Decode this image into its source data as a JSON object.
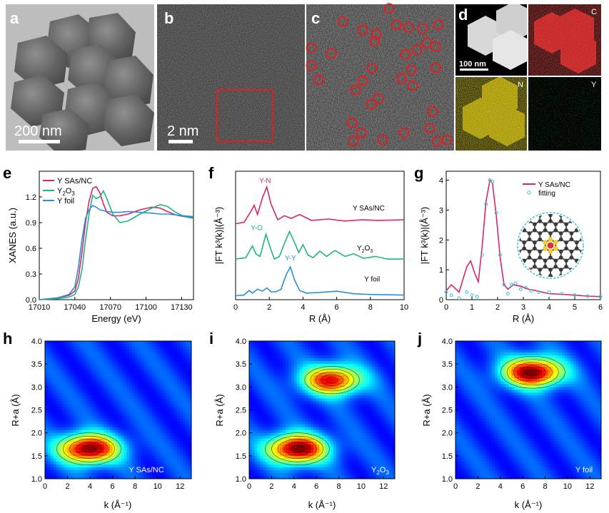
{
  "colors": {
    "sas": "#d6246e",
    "y2o3": "#1fb57f",
    "foil": "#2b8fd6",
    "fit": "#38c6cc",
    "scalebar": "#ffffff",
    "circle": "#e02020",
    "carbon": "#3a3a3a",
    "nitrogen": "#f1cc2a",
    "yttrium": "#e03030"
  },
  "panels": {
    "a": {
      "label": "a",
      "scalebar": "200 nm"
    },
    "b": {
      "label": "b",
      "scalebar": "2 nm"
    },
    "c": {
      "label": "c"
    },
    "d": {
      "label": "d",
      "scalebar": "100 nm",
      "maps": [
        "C",
        "N",
        "Y"
      ]
    },
    "e": {
      "label": "e"
    },
    "f": {
      "label": "f"
    },
    "g": {
      "label": "g"
    },
    "h": {
      "label": "h",
      "tag": "Y SAs/NC"
    },
    "i": {
      "label": "i",
      "tag_main": "Y",
      "tag_sub1": "2",
      "tag_mid": "O",
      "tag_sub2": "3"
    },
    "j": {
      "label": "j",
      "tag": "Y foil"
    }
  },
  "chart_data": [
    {
      "id": "e",
      "type": "line",
      "xlabel": "Energy (eV)",
      "ylabel": "XANES (a.u.)",
      "xlim": [
        17010,
        17140
      ],
      "ylim": [
        0,
        1.5
      ],
      "xticks": [
        "17010",
        "17040",
        "17070",
        "17100",
        "17130"
      ],
      "yticks": [
        "0.0",
        "0.3",
        "0.6",
        "0.9",
        "1.2"
      ],
      "legend": [
        "Y SAs/NC",
        "Y2O3",
        "Y foil"
      ],
      "series": [
        {
          "name": "Y SAs/NC",
          "x": [
            17010,
            17025,
            17035,
            17040,
            17043,
            17046,
            17049,
            17052,
            17055,
            17058,
            17061,
            17064,
            17067,
            17072,
            17078,
            17085,
            17095,
            17105,
            17112,
            17118,
            17125,
            17132,
            17140
          ],
          "y": [
            0.0,
            0.02,
            0.05,
            0.1,
            0.25,
            0.55,
            0.9,
            1.15,
            1.3,
            1.32,
            1.25,
            1.12,
            1.02,
            0.98,
            0.98,
            1.0,
            1.05,
            1.08,
            1.07,
            1.03,
            0.99,
            0.97,
            0.96
          ]
        },
        {
          "name": "Y2O3",
          "x": [
            17010,
            17025,
            17035,
            17040,
            17043,
            17046,
            17049,
            17052,
            17055,
            17058,
            17061,
            17064,
            17067,
            17072,
            17078,
            17085,
            17095,
            17105,
            17112,
            17118,
            17125,
            17132,
            17140
          ],
          "y": [
            0.0,
            0.01,
            0.03,
            0.06,
            0.15,
            0.35,
            0.7,
            1.0,
            1.22,
            1.18,
            1.2,
            1.27,
            1.18,
            1.0,
            0.9,
            0.92,
            1.0,
            1.07,
            1.11,
            1.09,
            1.02,
            0.97,
            0.95
          ]
        },
        {
          "name": "Y foil",
          "x": [
            17010,
            17025,
            17035,
            17040,
            17043,
            17046,
            17049,
            17052,
            17055,
            17058,
            17061,
            17064,
            17067,
            17072,
            17078,
            17085,
            17095,
            17105,
            17112,
            17118,
            17125,
            17132,
            17140
          ],
          "y": [
            0.0,
            0.02,
            0.06,
            0.15,
            0.38,
            0.7,
            0.95,
            1.05,
            1.1,
            1.08,
            1.05,
            1.04,
            1.03,
            1.02,
            1.02,
            1.03,
            1.02,
            1.01,
            1.0,
            1.0,
            0.99,
            0.98,
            0.97
          ]
        }
      ]
    },
    {
      "id": "f",
      "type": "line",
      "xlabel": "R (Å)",
      "ylabel": "|FT k³(k)|(Å⁻³)",
      "xlim": [
        0,
        10
      ],
      "xticks": [
        "0",
        "2",
        "4",
        "6",
        "8",
        "10"
      ],
      "labels": [
        {
          "text": "Y-N",
          "x": 1.75,
          "y": 8.6,
          "series": "Y SAs/NC"
        },
        {
          "text": "Y SAs/NC",
          "x": 7.9,
          "y": 6.5
        },
        {
          "text": "Y-O",
          "x": 1.25,
          "y": 5.0,
          "series": "Y2O3"
        },
        {
          "text": "Y foil",
          "x": 8.1,
          "y": 1.1
        },
        {
          "text": "Y-Y",
          "x": 3.25,
          "y": 2.7,
          "series": "Y foil"
        }
      ],
      "series": [
        {
          "name": "Y SAs/NC",
          "x": [
            0,
            0.5,
            0.9,
            1.1,
            1.3,
            1.6,
            1.85,
            2.1,
            2.5,
            2.9,
            3.3,
            3.8,
            4.5,
            5.5,
            6.5,
            7.5,
            8.5,
            10
          ],
          "y": [
            5.5,
            5.6,
            6.4,
            6.9,
            6.2,
            7.5,
            8.3,
            7.0,
            5.8,
            6.1,
            5.9,
            6.2,
            5.75,
            5.85,
            5.7,
            5.8,
            5.75,
            5.8
          ]
        },
        {
          "name": "Y2O3",
          "x": [
            0,
            0.6,
            1.0,
            1.2,
            1.45,
            1.8,
            2.1,
            2.3,
            2.6,
            2.9,
            3.2,
            3.45,
            3.75,
            4.0,
            4.3,
            4.6,
            5.0,
            5.4,
            5.9,
            6.5,
            7.0,
            7.6,
            8.3,
            9,
            10
          ],
          "y": [
            2.8,
            2.9,
            3.8,
            3.2,
            3.0,
            4.7,
            3.5,
            2.8,
            3.0,
            4.0,
            4.9,
            4.2,
            3.3,
            3.9,
            3.1,
            2.9,
            3.4,
            3.0,
            3.45,
            3.0,
            3.2,
            2.85,
            3.0,
            2.8,
            2.8
          ]
        },
        {
          "name": "Y foil",
          "x": [
            0,
            0.5,
            0.8,
            1.0,
            1.3,
            1.6,
            1.85,
            2.1,
            2.4,
            2.7,
            3.0,
            3.25,
            3.5,
            3.8,
            4.2,
            5.0,
            6.0,
            7.0,
            8.0,
            10
          ],
          "y": [
            0.0,
            0.05,
            0.4,
            0.2,
            0.5,
            0.35,
            0.6,
            0.3,
            0.3,
            0.5,
            1.6,
            2.2,
            1.2,
            0.4,
            0.2,
            0.25,
            0.35,
            0.15,
            0.1,
            0.05
          ]
        }
      ]
    },
    {
      "id": "g",
      "type": "line",
      "xlabel": "R (Å)",
      "ylabel": "|FT k³(k)|(Å⁻³)",
      "xlim": [
        0,
        6
      ],
      "ylim": [
        0,
        4.3
      ],
      "xticks": [
        "0",
        "1",
        "2",
        "3",
        "4",
        "5",
        "6"
      ],
      "yticks": [
        "0",
        "1",
        "2",
        "3",
        "4"
      ],
      "legend": [
        "Y SAs/NC",
        "fitting"
      ],
      "series": [
        {
          "name": "Y SAs/NC",
          "x": [
            0,
            0.2,
            0.5,
            0.8,
            0.95,
            1.1,
            1.25,
            1.4,
            1.55,
            1.7,
            1.8,
            1.95,
            2.1,
            2.25,
            2.4,
            2.6,
            2.9,
            3.2,
            3.5,
            4.0,
            4.5,
            5.0,
            5.5,
            6.0
          ],
          "y": [
            0.3,
            0.5,
            0.25,
            1.1,
            1.3,
            0.9,
            0.6,
            1.8,
            3.3,
            4.0,
            3.9,
            2.8,
            1.4,
            0.5,
            0.35,
            0.5,
            0.45,
            0.35,
            0.3,
            0.2,
            0.18,
            0.15,
            0.12,
            0.1
          ]
        },
        {
          "name": "fitting",
          "x": [
            0,
            0.2,
            0.5,
            0.8,
            1.0,
            1.2,
            1.4,
            1.55,
            1.7,
            1.8,
            1.95,
            2.1,
            2.25,
            2.4,
            2.55,
            2.7,
            2.9,
            3.1,
            3.3,
            3.6,
            4.0,
            4.5,
            5.0,
            5.5,
            6.0
          ],
          "y": [
            0.25,
            0.15,
            0.05,
            0.25,
            0.15,
            0.1,
            1.5,
            3.2,
            4.0,
            3.95,
            2.9,
            1.5,
            0.5,
            0.2,
            0.5,
            0.55,
            0.35,
            0.4,
            0.3,
            0.25,
            0.25,
            0.2,
            0.15,
            0.12,
            0.1
          ]
        }
      ]
    },
    {
      "id": "h",
      "type": "heatmap",
      "xlabel": "k (Å⁻¹)",
      "ylabel": "R+a (Å)",
      "xlim": [
        0,
        13
      ],
      "ylim": [
        1.0,
        4.0
      ],
      "xticks": [
        "0",
        "2",
        "4",
        "6",
        "8",
        "10",
        "12"
      ],
      "yticks": [
        "1.0",
        "1.5",
        "2.0",
        "2.5",
        "3.0",
        "3.5",
        "4.0"
      ],
      "peaks": [
        {
          "k": 3.9,
          "R": 1.65,
          "intensity": 1.0
        }
      ]
    },
    {
      "id": "i",
      "type": "heatmap",
      "xlabel": "k (Å⁻¹)",
      "ylabel": "R+a (Å)",
      "xlim": [
        0,
        13
      ],
      "ylim": [
        1.0,
        4.0
      ],
      "xticks": [
        "0",
        "2",
        "4",
        "6",
        "8",
        "10",
        "12"
      ],
      "yticks": [
        "1.0",
        "1.5",
        "2.0",
        "2.5",
        "3.0",
        "3.5",
        "4.0"
      ],
      "peaks": [
        {
          "k": 4.3,
          "R": 1.65,
          "intensity": 1.0
        },
        {
          "k": 7.4,
          "R": 3.15,
          "intensity": 0.85
        }
      ]
    },
    {
      "id": "j",
      "type": "heatmap",
      "xlabel": "k (Å⁻¹)",
      "ylabel": "R+a (Å)",
      "xlim": [
        0,
        13
      ],
      "ylim": [
        1.0,
        4.0
      ],
      "xticks": [
        "0",
        "2",
        "4",
        "6",
        "8",
        "10",
        "12"
      ],
      "yticks": [
        "1.0",
        "1.5",
        "2.0",
        "2.5",
        "3.0",
        "3.5",
        "4.0"
      ],
      "peaks": [
        {
          "k": 6.9,
          "R": 3.32,
          "intensity": 1.0
        }
      ]
    }
  ]
}
